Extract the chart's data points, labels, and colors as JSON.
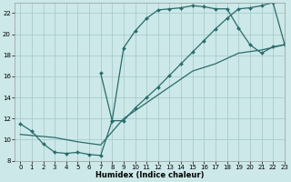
{
  "background_color": "#cce8e8",
  "grid_color": "#aacccc",
  "line_color": "#2a6b6b",
  "xlabel": "Humidex (Indice chaleur)",
  "xlim": [
    -0.5,
    23
  ],
  "ylim": [
    8,
    23
  ],
  "xticks": [
    0,
    1,
    2,
    3,
    4,
    5,
    6,
    7,
    8,
    9,
    10,
    11,
    12,
    13,
    14,
    15,
    16,
    17,
    18,
    19,
    20,
    21,
    22,
    23
  ],
  "yticks": [
    8,
    10,
    12,
    14,
    16,
    18,
    20,
    22
  ],
  "curve1_x": [
    0,
    1,
    2,
    3,
    4,
    5,
    6,
    7,
    8,
    9,
    10,
    11,
    12,
    13,
    14,
    15,
    16,
    17,
    18,
    19,
    20,
    21,
    22,
    23
  ],
  "curve1_y": [
    11.5,
    10.8,
    9.6,
    8.8,
    8.7,
    8.8,
    8.6,
    8.5,
    11.8,
    18.7,
    20.3,
    21.5,
    22.3,
    22.4,
    22.5,
    22.7,
    22.6,
    22.4,
    22.4,
    20.6,
    19.0,
    18.2,
    18.8,
    19.0
  ],
  "curve2_x": [
    7,
    8,
    9,
    10,
    11,
    12,
    13,
    14,
    15,
    16,
    17,
    18,
    19,
    20,
    21,
    22,
    23
  ],
  "curve2_y": [
    16.3,
    11.8,
    11.8,
    13.0,
    14.0,
    15.0,
    16.1,
    17.2,
    18.3,
    19.4,
    20.5,
    21.5,
    22.4,
    22.5,
    22.7,
    23.0,
    19.1
  ],
  "curve3_x": [
    0,
    3,
    5,
    7,
    9,
    11,
    13,
    15,
    17,
    19,
    21,
    23
  ],
  "curve3_y": [
    10.5,
    10.2,
    9.8,
    9.5,
    12.0,
    13.5,
    15.0,
    16.5,
    17.2,
    18.2,
    18.5,
    19.0
  ]
}
